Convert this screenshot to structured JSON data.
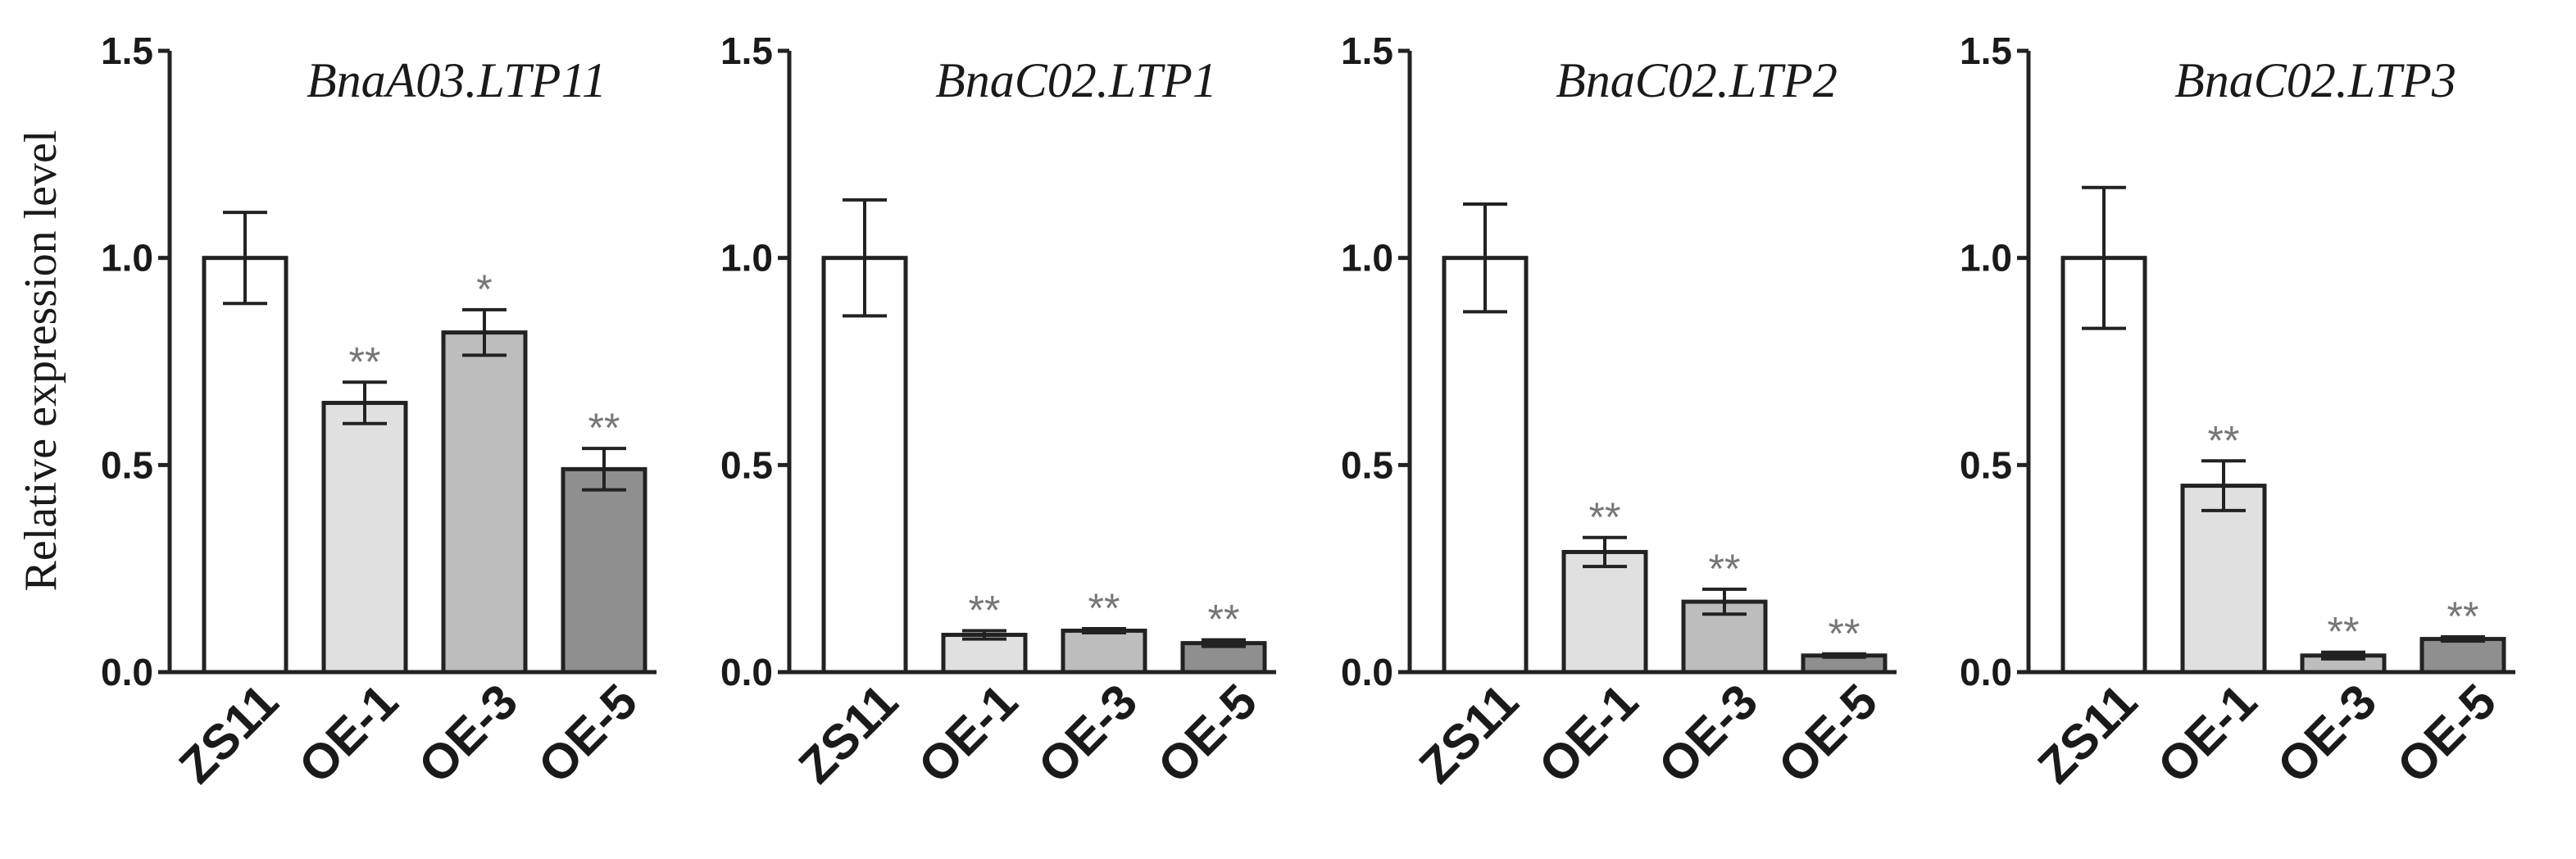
{
  "figure": {
    "ylabel": "Relative expression level"
  },
  "chart_data": [
    {
      "type": "bar",
      "title": "BnaA03.LTP11",
      "categories": [
        "ZS11",
        "OE-1",
        "OE-3",
        "OE-5"
      ],
      "values": [
        1.0,
        0.65,
        0.82,
        0.49
      ],
      "errors": [
        0.11,
        0.05,
        0.055,
        0.05
      ],
      "significance": [
        "",
        "**",
        "*",
        "**"
      ],
      "fills": [
        "#ffffff",
        "#e0e0e0",
        "#bdbdbd",
        "#8f8f8f"
      ],
      "ylim": [
        0,
        1.5
      ],
      "yticks": [
        "0.0",
        "0.5",
        "1.0",
        "1.5"
      ],
      "ylabel": "Relative expression level",
      "grid": false
    },
    {
      "type": "bar",
      "title": "BnaC02.LTP1",
      "categories": [
        "ZS11",
        "OE-1",
        "OE-3",
        "OE-5"
      ],
      "values": [
        1.0,
        0.09,
        0.1,
        0.07
      ],
      "errors": [
        0.14,
        0.01,
        0.005,
        0.008
      ],
      "significance": [
        "",
        "**",
        "**",
        "**"
      ],
      "fills": [
        "#ffffff",
        "#e0e0e0",
        "#bdbdbd",
        "#8f8f8f"
      ],
      "ylim": [
        0,
        1.5
      ],
      "yticks": [
        "0.0",
        "0.5",
        "1.0",
        "1.5"
      ],
      "ylabel": "",
      "grid": false
    },
    {
      "type": "bar",
      "title": "BnaC02.LTP2",
      "categories": [
        "ZS11",
        "OE-1",
        "OE-3",
        "OE-5"
      ],
      "values": [
        1.0,
        0.29,
        0.17,
        0.04
      ],
      "errors": [
        0.13,
        0.035,
        0.03,
        0.004
      ],
      "significance": [
        "",
        "**",
        "**",
        "**"
      ],
      "fills": [
        "#ffffff",
        "#e0e0e0",
        "#bdbdbd",
        "#8f8f8f"
      ],
      "ylim": [
        0,
        1.5
      ],
      "yticks": [
        "0.0",
        "0.5",
        "1.0",
        "1.5"
      ],
      "ylabel": "",
      "grid": false
    },
    {
      "type": "bar",
      "title": "BnaC02.LTP3",
      "categories": [
        "ZS11",
        "OE-1",
        "OE-3",
        "OE-5"
      ],
      "values": [
        1.0,
        0.45,
        0.04,
        0.08
      ],
      "errors": [
        0.17,
        0.06,
        0.008,
        0.005
      ],
      "significance": [
        "",
        "**",
        "**",
        "**"
      ],
      "fills": [
        "#ffffff",
        "#e0e0e0",
        "#bdbdbd",
        "#8f8f8f"
      ],
      "ylim": [
        0,
        1.5
      ],
      "yticks": [
        "0.0",
        "0.5",
        "1.0",
        "1.5"
      ],
      "ylabel": "",
      "grid": false
    }
  ]
}
